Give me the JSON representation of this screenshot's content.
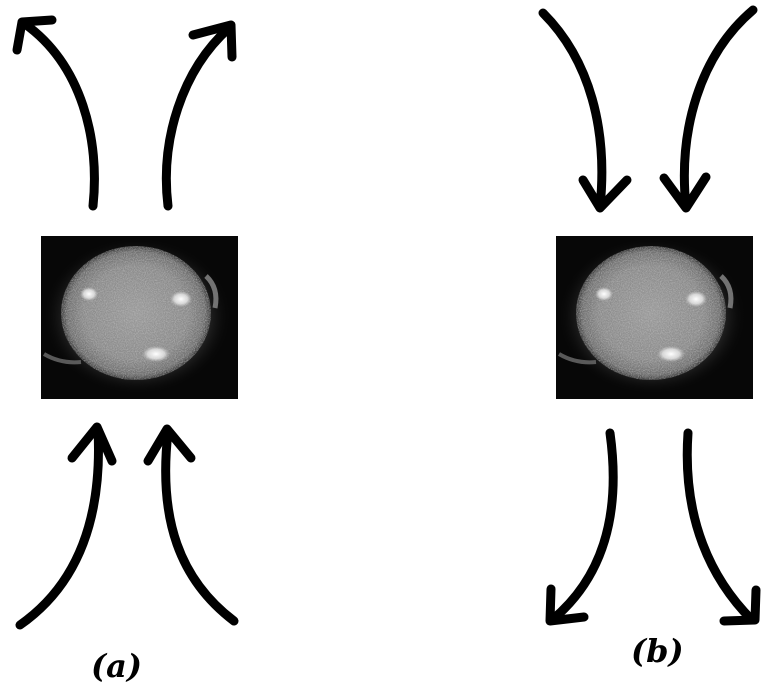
{
  "panels": [
    {
      "id": "a",
      "label": "(a)",
      "image_description": "sun-image",
      "colors": {
        "arrow": "#000000",
        "frame": "#000000"
      },
      "upper_arrows": "outward",
      "lower_arrows": "inward"
    },
    {
      "id": "b",
      "label": "(b)",
      "image_description": "sun-image",
      "colors": {
        "arrow": "#000000",
        "frame": "#000000"
      },
      "upper_arrows": "inward",
      "lower_arrows": "outward"
    }
  ]
}
